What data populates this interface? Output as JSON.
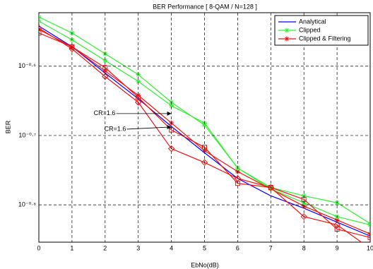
{
  "chart_data": {
    "type": "line",
    "title": "BER Performance [ 8-QAM / N=128 ]",
    "x_label": "EbNo(dB)",
    "y_label": "BER",
    "yscale": "log",
    "grid": true,
    "legend": "upper right",
    "x": [
      0,
      1,
      2,
      3,
      4,
      5,
      6,
      7,
      8,
      9,
      10
    ],
    "xlim": [
      0,
      10
    ],
    "xticks": [
      0,
      1,
      2,
      3,
      4,
      5,
      6,
      7,
      8,
      9,
      10
    ],
    "ylim": [
      0.14,
      0.3
    ],
    "yticks": [
      {
        "value": 0.251189,
        "label": "10⁻⁰·⁶"
      },
      {
        "value": 0.199526,
        "label": "10⁻⁰·⁷"
      },
      {
        "value": 0.158489,
        "label": "10⁻⁰·⁸"
      }
    ],
    "series": [
      {
        "name": "Analytical",
        "color": "#0000ff",
        "marker": "none",
        "values": [
          0.287,
          0.268,
          0.2455,
          0.2254,
          0.2056,
          0.1884,
          0.173,
          0.1633,
          0.1567,
          0.1496,
          0.1429
        ]
      },
      {
        "name": "Clipped",
        "color": "#33ee33",
        "marker": "star",
        "values": [
          0.2958,
          0.2805,
          0.2618,
          0.2443,
          0.2228,
          0.2065,
          0.1791,
          0.1679,
          0.1633,
          0.1596,
          0.1489
        ]
      },
      {
        "name": "Clipped & Filtering",
        "color": "#ee1111",
        "marker": "star",
        "values": [
          0.2838,
          0.2679,
          0.2472,
          0.228,
          0.208,
          0.1897,
          0.177,
          0.1671,
          0.1578,
          0.1507,
          0.1439
        ]
      },
      {
        "color": "#33ee33",
        "marker": "star",
        "values": [
          0.2917,
          0.2742,
          0.2559,
          0.2388,
          0.2203,
          0.208,
          0.1791,
          0.1671,
          0.1596,
          0.1524,
          0.1483
        ]
      },
      {
        "color": "#ee1111",
        "marker": "square",
        "values": [
          0.2805,
          0.2679,
          0.25,
          0.2265,
          0.2032,
          0.1919,
          0.1702,
          0.1679,
          0.1614,
          0.1462,
          0.1422
        ]
      },
      {
        "color": "#ee1111",
        "marker": "diamond",
        "values": [
          0.2851,
          0.2661,
          0.2427,
          0.2228,
          0.191,
          0.1824,
          0.173,
          0.1679,
          0.1524,
          0.1483,
          0.1371
        ]
      }
    ],
    "annotations": [
      {
        "text": "CR=1.6",
        "x": 4,
        "y": 0.2146
      },
      {
        "text": "CR=1.6",
        "x": 4,
        "y": 0.2052
      }
    ]
  }
}
